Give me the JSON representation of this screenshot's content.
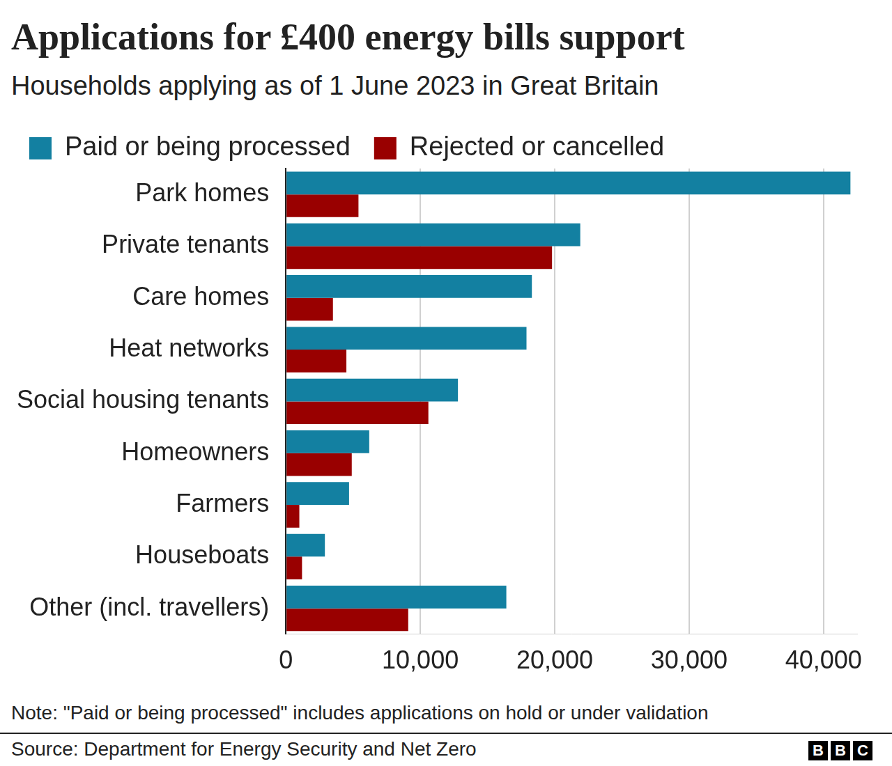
{
  "chart_data": {
    "type": "bar",
    "orientation": "horizontal",
    "title": "Applications for £400 energy bills support",
    "subtitle": "Households applying as of 1 June 2023 in Great Britain",
    "categories": [
      "Park homes",
      "Private tenants",
      "Care homes",
      "Heat networks",
      "Social housing tenants",
      "Homeowners",
      "Farmers",
      "Houseboats",
      "Other (incl. travellers)"
    ],
    "series": [
      {
        "name": "Paid or being processed",
        "color": "#1380a1",
        "values": [
          42000,
          21900,
          18300,
          17900,
          12800,
          6200,
          4700,
          2900,
          16400
        ]
      },
      {
        "name": "Rejected or cancelled",
        "color": "#990000",
        "values": [
          5400,
          19800,
          3500,
          4500,
          10600,
          4900,
          1000,
          1200,
          9100
        ]
      }
    ],
    "xlim": [
      0,
      42500
    ],
    "xticks": [
      0,
      {
        "value": 10000,
        "label": "10,000"
      },
      {
        "value": 20000,
        "label": "20,000"
      },
      {
        "value": 30000,
        "label": "30,000"
      },
      {
        "value": 40000,
        "label": "40,000"
      }
    ],
    "grid": true,
    "legend": "top-left",
    "note": "Note: \"Paid or being processed\" includes applications on hold or under validation",
    "source": "Source: Department for Energy Security and Net Zero",
    "logo": "BBC"
  }
}
